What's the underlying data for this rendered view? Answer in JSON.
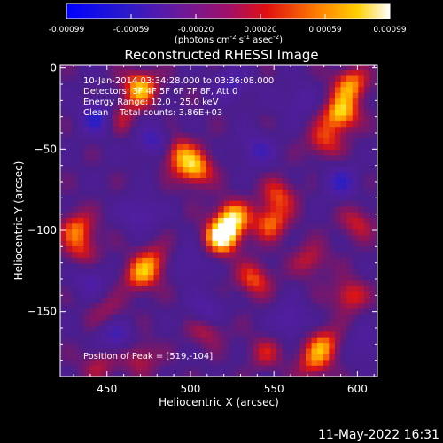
{
  "colors": {
    "background": "#000000",
    "text": "#ffffff"
  },
  "colorbar": {
    "min": -0.00099,
    "max": 0.00099,
    "tick_labels": [
      "-0.00099",
      "-0.00059",
      "-0.00020",
      "0.00020",
      "0.00059",
      "0.00099"
    ],
    "unit_label": "(photons cm",
    "unit_sup1": "-2",
    "unit_mid1": " s",
    "unit_sup2": "-1",
    "unit_mid2": " asec",
    "unit_sup3": "-2",
    "unit_end": ")"
  },
  "chart_data": {
    "type": "heatmap",
    "title": "Reconstructed RHESSI Image",
    "xlabel": "Heliocentric X (arcsec)",
    "ylabel": "Heliocentric Y (arcsec)",
    "xlim": [
      422,
      612
    ],
    "ylim": [
      -190,
      2
    ],
    "x_ticks": [
      450,
      500,
      550,
      600
    ],
    "y_ticks": [
      0,
      -50,
      -100,
      -150
    ],
    "x_tick_labels": [
      "450",
      "500",
      "550",
      "600"
    ],
    "y_tick_labels": [
      "0",
      "−50",
      "−100",
      "−150"
    ],
    "peak_position": [
      519,
      -104
    ],
    "hotspots": [
      {
        "x": 519,
        "y": -104,
        "value": 0.00099
      },
      {
        "x": 525,
        "y": -92,
        "value": 0.0008
      },
      {
        "x": 503,
        "y": -62,
        "value": 0.00075
      },
      {
        "x": 492,
        "y": -52,
        "value": 0.0006
      },
      {
        "x": 470,
        "y": -12,
        "value": 0.0008
      },
      {
        "x": 458,
        "y": -30,
        "value": 0.0004
      },
      {
        "x": 590,
        "y": -28,
        "value": 0.00085
      },
      {
        "x": 596,
        "y": -10,
        "value": 0.0007
      },
      {
        "x": 580,
        "y": -45,
        "value": 0.0005
      },
      {
        "x": 548,
        "y": -95,
        "value": 0.0006
      },
      {
        "x": 553,
        "y": -78,
        "value": 0.0005
      },
      {
        "x": 432,
        "y": -98,
        "value": 0.00055
      },
      {
        "x": 435,
        "y": -112,
        "value": 0.0004
      },
      {
        "x": 470,
        "y": -128,
        "value": 0.0006
      },
      {
        "x": 478,
        "y": -118,
        "value": 0.00045
      },
      {
        "x": 538,
        "y": -130,
        "value": 0.00055
      },
      {
        "x": 595,
        "y": -140,
        "value": 0.0005
      },
      {
        "x": 572,
        "y": -118,
        "value": 0.0004
      },
      {
        "x": 510,
        "y": -160,
        "value": 0.00045
      },
      {
        "x": 470,
        "y": -178,
        "value": 0.0004
      },
      {
        "x": 580,
        "y": -170,
        "value": 0.0006
      },
      {
        "x": 573,
        "y": -182,
        "value": 0.00045
      },
      {
        "x": 600,
        "y": -95,
        "value": 0.0004
      },
      {
        "x": 445,
        "y": -182,
        "value": 0.00035
      },
      {
        "x": 545,
        "y": -175,
        "value": 0.00035
      },
      {
        "x": 450,
        "y": -150,
        "value": 0.0003
      }
    ],
    "coldspots": [
      {
        "x": 445,
        "y": -30,
        "value": -0.0006
      },
      {
        "x": 478,
        "y": -45,
        "value": -0.0005
      },
      {
        "x": 510,
        "y": -150,
        "value": -0.00045
      },
      {
        "x": 540,
        "y": -50,
        "value": -0.0004
      },
      {
        "x": 590,
        "y": -70,
        "value": -0.00045
      },
      {
        "x": 455,
        "y": -165,
        "value": -0.00045
      },
      {
        "x": 560,
        "y": -155,
        "value": -0.0004
      },
      {
        "x": 440,
        "y": -130,
        "value": -0.00035
      },
      {
        "x": 525,
        "y": -10,
        "value": -0.0004
      },
      {
        "x": 470,
        "y": -90,
        "value": -0.0004
      },
      {
        "x": 500,
        "y": -120,
        "value": -0.0003
      },
      {
        "x": 565,
        "y": -20,
        "value": -0.0003
      },
      {
        "x": 605,
        "y": -170,
        "value": -0.0003
      }
    ]
  },
  "info": {
    "time_range": "10-Jan-2014 03:34:28.000 to 03:36:08.000",
    "detectors": "Detectors: 3F 4F 5F 6F 7F 8F, Att 0",
    "energy": "Energy Range: 12.0 - 25.0 keV",
    "clean": "Clean    Total counts: 3.86E+03",
    "peak": "Position of Peak = [519,-104]"
  },
  "timestamp": "11-May-2022 16:31"
}
